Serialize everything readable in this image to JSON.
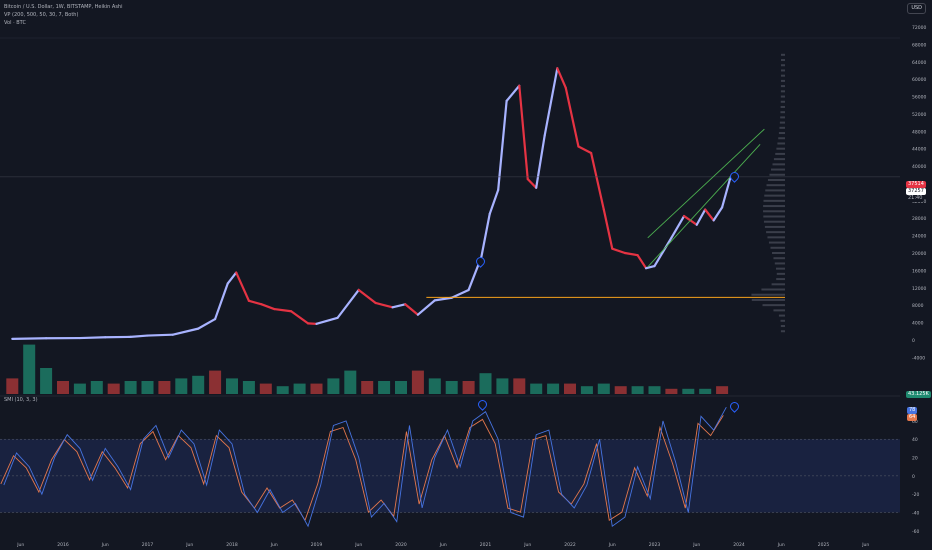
{
  "header": {
    "title": "Bitcoin / U.S. Dollar, 1W, BITSTAMP, Heikin Ashi",
    "vp_label": "VP (200, 500, 50, 30, 7, Both)",
    "vol_label": "Vol · BTC",
    "currency_button": "USD"
  },
  "smi": {
    "label": "SMI (10, 3, 3)",
    "badge_1": "78",
    "badge_2": "64"
  },
  "price_badges": {
    "current": "37514",
    "b2": "37257",
    "b3": "21:40"
  },
  "volume_badge": "43.125K",
  "colors": {
    "up": "#a8b3ff",
    "down": "#e53343",
    "vol_up": "#1f8a70",
    "vol_down": "#b43a3a",
    "channel": "#4caf50",
    "poc": "#f7a21b",
    "smi_band": "#1e2a55",
    "smi_fill": "#3a7a4a",
    "smi_signal": "#e4774c",
    "smi_main": "#4673e0",
    "pin": "#2962ff"
  },
  "chart_data": [
    {
      "type": "line",
      "title": "Bitcoin / U.S. Dollar, 1W, BITSTAMP, Heikin Ashi",
      "xlabel": "",
      "ylabel": "",
      "x_ticks": [
        "Jun",
        "2016",
        "Jun",
        "2017",
        "Jun",
        "2018",
        "Jun",
        "2019",
        "Jun",
        "2020",
        "Jun",
        "2021",
        "Jun",
        "2022",
        "Jun",
        "2023",
        "Jun",
        "2024",
        "Jun",
        "2025",
        "Jun"
      ],
      "y_ticks": [
        72000,
        68000,
        64000,
        60000,
        56000,
        52000,
        48000,
        44000,
        40000,
        36000,
        32000,
        28000,
        24000,
        20000,
        16000,
        12000,
        8000,
        4000,
        0,
        -4000
      ],
      "ylim": [
        -6000,
        72000
      ],
      "series": [
        {
          "x": [
            2015.4,
            2015.8,
            2016.2,
            2016.5,
            2016.8,
            2017.0,
            2017.3,
            2017.6,
            2017.8,
            2017.95,
            2018.05,
            2018.2,
            2018.35,
            2018.5,
            2018.7,
            2018.9,
            2019.0,
            2019.25,
            2019.5,
            2019.7,
            2019.9,
            2020.05,
            2020.2,
            2020.4,
            2020.6,
            2020.8,
            2020.95,
            2021.05,
            2021.15,
            2021.25,
            2021.4,
            2021.5,
            2021.6,
            2021.7,
            2021.85,
            2021.95,
            2022.1,
            2022.25,
            2022.4,
            2022.5,
            2022.65,
            2022.8,
            2022.9,
            2023.0,
            2023.2,
            2023.35,
            2023.5,
            2023.6,
            2023.7,
            2023.8,
            2023.9
          ],
          "y": [
            240,
            380,
            430,
            620,
            700,
            1000,
            1200,
            2600,
            4800,
            13000,
            15500,
            9000,
            8200,
            7100,
            6600,
            3800,
            3700,
            5100,
            11500,
            8500,
            7500,
            8200,
            5800,
            9100,
            9700,
            11500,
            19000,
            29000,
            34500,
            55000,
            58500,
            37000,
            35000,
            47000,
            62500,
            58000,
            44500,
            43000,
            30000,
            21000,
            20000,
            19500,
            16500,
            17000,
            23500,
            28500,
            26500,
            30000,
            27500,
            30500,
            37500
          ]
        }
      ],
      "channel": [
        {
          "x": [
            2022.92,
            2024.25
          ],
          "y": [
            16800,
            45000
          ]
        },
        {
          "x": [
            2022.92,
            2024.3
          ],
          "y": [
            23500,
            48500
          ]
        }
      ],
      "poc_price": 9800,
      "markers": [
        {
          "x": 2020.92,
          "y": 22500
        },
        {
          "x": 2023.83,
          "y": 39000
        }
      ]
    },
    {
      "type": "bar",
      "xlabel": "",
      "ylabel": "",
      "series": [
        {
          "name": "Vol · BTC",
          "x": [
            2015.4,
            2015.6,
            2015.8,
            2016.0,
            2016.2,
            2016.4,
            2016.6,
            2016.8,
            2017.0,
            2017.2,
            2017.4,
            2017.6,
            2017.8,
            2018.0,
            2018.2,
            2018.4,
            2018.6,
            2018.8,
            2019.0,
            2019.2,
            2019.4,
            2019.6,
            2019.8,
            2020.0,
            2020.2,
            2020.4,
            2020.6,
            2020.8,
            2021.0,
            2021.2,
            2021.4,
            2021.6,
            2021.8,
            2022.0,
            2022.2,
            2022.4,
            2022.6,
            2022.8,
            2023.0,
            2023.2,
            2023.4,
            2023.6,
            2023.8
          ],
          "values": [
            0.6,
            1.9,
            1.0,
            0.5,
            0.4,
            0.5,
            0.4,
            0.5,
            0.5,
            0.5,
            0.6,
            0.7,
            0.9,
            0.6,
            0.5,
            0.4,
            0.3,
            0.4,
            0.4,
            0.6,
            0.9,
            0.5,
            0.5,
            0.5,
            0.9,
            0.6,
            0.5,
            0.5,
            0.8,
            0.6,
            0.6,
            0.4,
            0.4,
            0.4,
            0.3,
            0.4,
            0.3,
            0.3,
            0.3,
            0.2,
            0.2,
            0.2,
            0.3
          ]
        }
      ]
    },
    {
      "type": "line",
      "title": "SMI (10, 3, 3)",
      "xlabel": "",
      "ylabel": "",
      "y_ticks": [
        60,
        40,
        20,
        0,
        -20,
        -40,
        -60
      ],
      "ylim": [
        -70,
        85
      ],
      "band": [
        -40,
        40
      ],
      "series": [
        {
          "name": "SMI",
          "x": [
            2015.3,
            2015.45,
            2015.6,
            2015.75,
            2015.9,
            2016.05,
            2016.2,
            2016.35,
            2016.5,
            2016.65,
            2016.8,
            2016.95,
            2017.1,
            2017.25,
            2017.4,
            2017.55,
            2017.7,
            2017.85,
            2018.0,
            2018.15,
            2018.3,
            2018.45,
            2018.6,
            2018.75,
            2018.9,
            2019.05,
            2019.2,
            2019.35,
            2019.5,
            2019.65,
            2019.8,
            2019.95,
            2020.1,
            2020.25,
            2020.4,
            2020.55,
            2020.7,
            2020.85,
            2021.0,
            2021.15,
            2021.3,
            2021.45,
            2021.6,
            2021.75,
            2021.9,
            2022.05,
            2022.2,
            2022.35,
            2022.5,
            2022.65,
            2022.8,
            2022.95,
            2023.1,
            2023.25,
            2023.4,
            2023.55,
            2023.7,
            2023.85
          ],
          "values": [
            -10,
            25,
            10,
            -20,
            20,
            45,
            30,
            -5,
            30,
            10,
            -15,
            40,
            55,
            20,
            50,
            35,
            -10,
            50,
            35,
            -20,
            -40,
            -15,
            -40,
            -30,
            -55,
            -10,
            55,
            60,
            20,
            -45,
            -30,
            -50,
            55,
            -35,
            20,
            50,
            10,
            60,
            70,
            40,
            -40,
            -45,
            45,
            50,
            -20,
            -35,
            -10,
            40,
            -55,
            -45,
            10,
            -25,
            60,
            15,
            -40,
            65,
            50,
            75
          ]
        }
      ]
    }
  ]
}
